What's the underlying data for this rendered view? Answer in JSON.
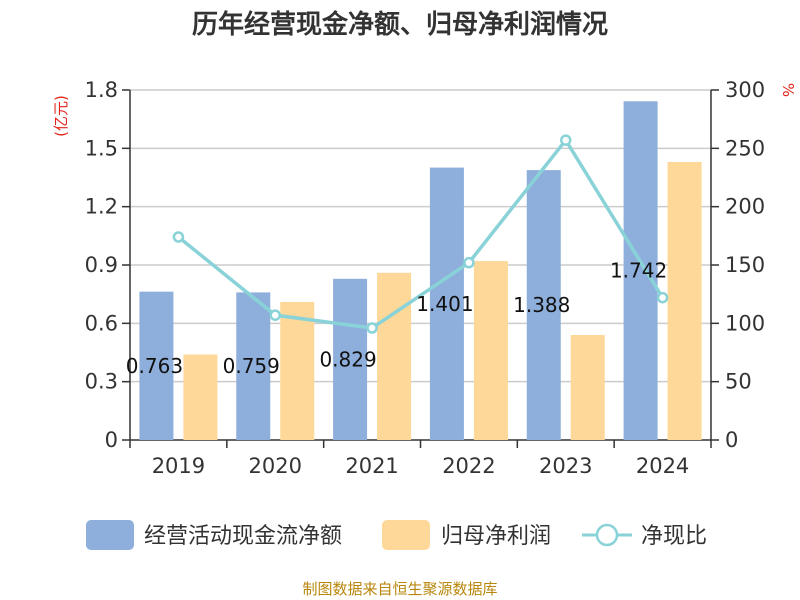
{
  "title": "历年经营现金净额、归母净利润情况",
  "source": "制图数据来自恒生聚源数据库",
  "chart_data": {
    "type": "bar",
    "categories": [
      "2019",
      "2020",
      "2021",
      "2022",
      "2023",
      "2024"
    ],
    "series": [
      {
        "name": "经营活动现金流净额",
        "kind": "bar",
        "axis": "left",
        "color": "#8eaedb",
        "values": [
          0.763,
          0.759,
          0.829,
          1.401,
          1.388,
          1.742
        ],
        "labels_shown": true
      },
      {
        "name": "归母净利润",
        "kind": "bar",
        "axis": "left",
        "color": "#fdd898",
        "values": [
          0.44,
          0.71,
          0.86,
          0.92,
          0.54,
          1.43
        ],
        "labels_shown": false
      },
      {
        "name": "净现比",
        "kind": "line",
        "axis": "right",
        "color": "#89d3d8",
        "values": [
          174,
          107,
          96,
          152,
          257,
          122
        ],
        "labels_shown": false
      }
    ],
    "y_left": {
      "label": "(亿元)",
      "min": 0,
      "max": 1.8,
      "ticks": [
        0,
        0.3,
        0.6,
        0.9,
        1.2,
        1.5,
        1.8
      ],
      "tick_labels": [
        "0",
        "0.3",
        "0.6",
        "0.9",
        "1.2",
        "1.5",
        "1.8"
      ]
    },
    "y_right": {
      "label": "%",
      "min": 0,
      "max": 300,
      "ticks": [
        0,
        50,
        100,
        150,
        200,
        250,
        300
      ],
      "tick_labels": [
        "0",
        "50",
        "100",
        "150",
        "200",
        "250",
        "300"
      ]
    },
    "grid": true,
    "legend_position": "bottom"
  }
}
